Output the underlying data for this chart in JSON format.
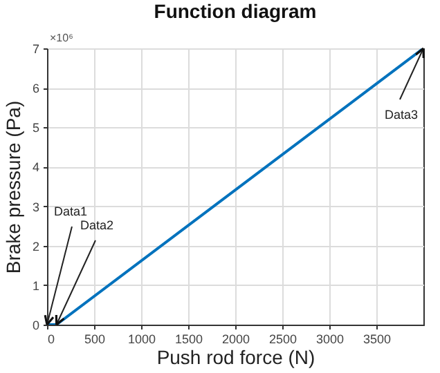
{
  "chart_data": {
    "type": "line",
    "title": "Function diagram",
    "xlabel": "Push rod force (N)",
    "ylabel": "Brake pressure (Pa)",
    "x": [
      0,
      100,
      4000
    ],
    "series": [
      {
        "color": "#0072bd",
        "values": [
          0,
          0,
          7
        ]
      }
    ],
    "xlim": [
      0,
      4000
    ],
    "xticks": [
      0,
      500,
      1000,
      1500,
      2000,
      2500,
      3000,
      3500
    ],
    "ylim": [
      0,
      7
    ],
    "yticks": [
      0,
      1,
      2,
      3,
      4,
      5,
      6,
      7
    ],
    "grid": true,
    "line_style": "solid",
    "annotations": [
      "×10⁶",
      {
        "text": "Data1",
        "x": 0,
        "y": 0
      },
      {
        "text": "Data2",
        "x": 100,
        "y": 0
      },
      {
        "text": "Data3",
        "x": 4000,
        "y": 7
      }
    ]
  }
}
